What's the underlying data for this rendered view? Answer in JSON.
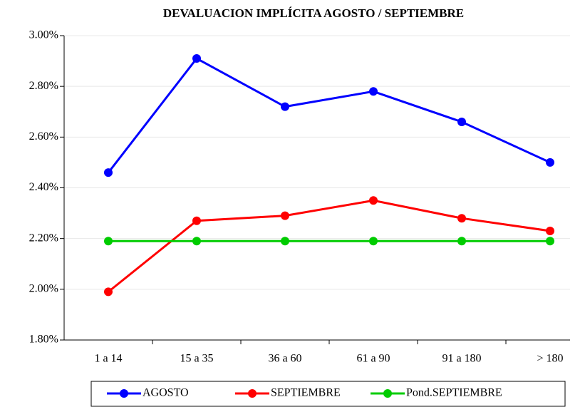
{
  "chart_data": {
    "type": "line",
    "title": "DEVALUACION IMPLÍCITA AGOSTO / SEPTIEMBRE",
    "categories": [
      "1 a 14",
      "15 a 35",
      "36 a 60",
      "61 a 90",
      "91 a 180",
      "> 180"
    ],
    "series": [
      {
        "name": "AGOSTO",
        "color": "#0000ff",
        "values": [
          2.46,
          2.91,
          2.72,
          2.78,
          2.66,
          2.5
        ]
      },
      {
        "name": "SEPTIEMBRE",
        "color": "#ff0000",
        "values": [
          1.99,
          2.27,
          2.29,
          2.35,
          2.28,
          2.23
        ]
      },
      {
        "name": "Pond.SEPTIEMBRE",
        "color": "#00cc00",
        "values": [
          2.19,
          2.19,
          2.19,
          2.19,
          2.19,
          2.19
        ]
      }
    ],
    "ylim": [
      1.8,
      3.0
    ],
    "yticks": [
      {
        "value": 1.8,
        "label": "1.80%"
      },
      {
        "value": 2.0,
        "label": "2.00%"
      },
      {
        "value": 2.2,
        "label": "2.20%"
      },
      {
        "value": 2.4,
        "label": "2.40%"
      },
      {
        "value": 2.6,
        "label": "2.60%"
      },
      {
        "value": 2.8,
        "label": "2.80%"
      },
      {
        "value": 3.0,
        "label": "3.00%"
      }
    ],
    "grid": true,
    "legend": "bottom"
  }
}
